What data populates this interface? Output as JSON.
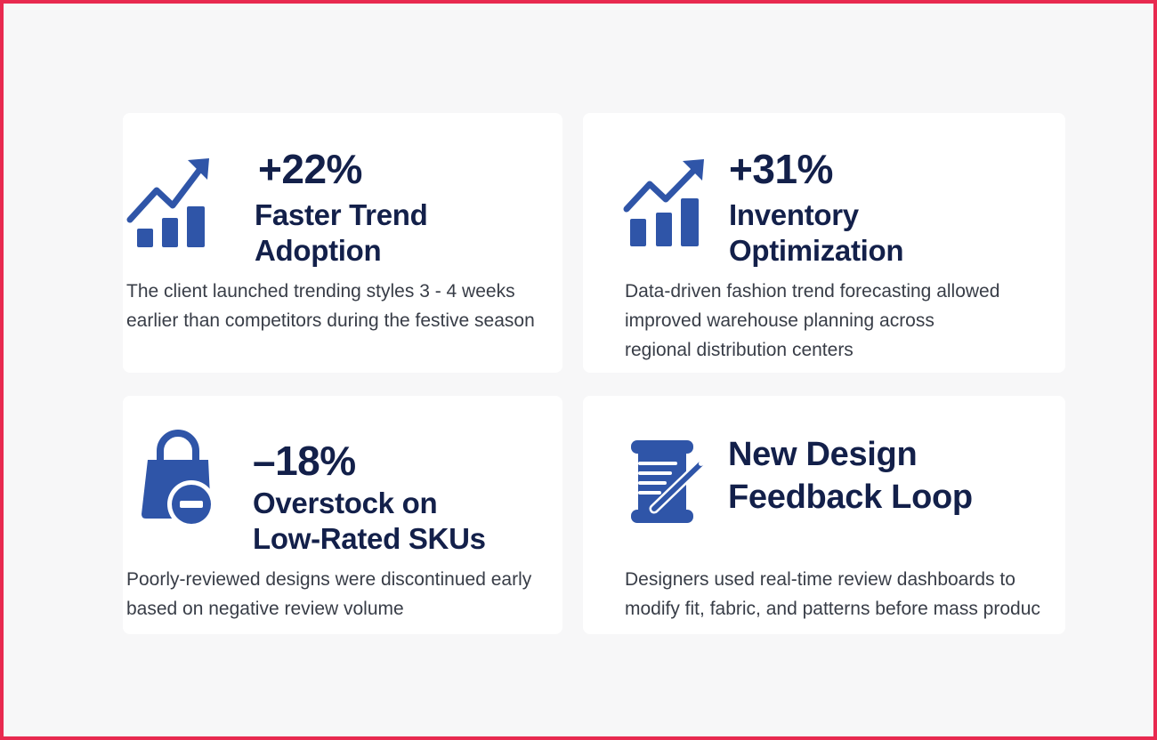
{
  "accent_color": "#2f55a8",
  "heading_color": "#13204a",
  "cards": [
    {
      "icon": "growth-chart-icon",
      "metric": "+22%",
      "title_line1": "Faster Trend",
      "title_line2": "Adoption",
      "desc_line1": "The client launched trending styles 3 - 4 weeks",
      "desc_line2": "earlier than competitors during the festive season"
    },
    {
      "icon": "growth-chart-icon",
      "metric": "+31%",
      "title_line1": "Inventory",
      "title_line2": "Optimization",
      "desc_line1": "Data-driven fashion trend forecasting allowed",
      "desc_line2": "improved warehouse planning across",
      "desc_line3": "regional distribution centers"
    },
    {
      "icon": "shopping-bag-minus-icon",
      "metric": "–18%",
      "title_line1": "Overstock on",
      "title_line2": "Low-Rated SKUs",
      "desc_line1": "Poorly-reviewed designs were discontinued early",
      "desc_line2": "based on negative review volume"
    },
    {
      "icon": "spool-needle-icon",
      "title_line1": "New Design",
      "title_line2": "Feedback Loop",
      "desc_line1": "Designers used real-time review dashboards to",
      "desc_line2": "modify fit, fabric, and patterns before mass produc"
    }
  ]
}
